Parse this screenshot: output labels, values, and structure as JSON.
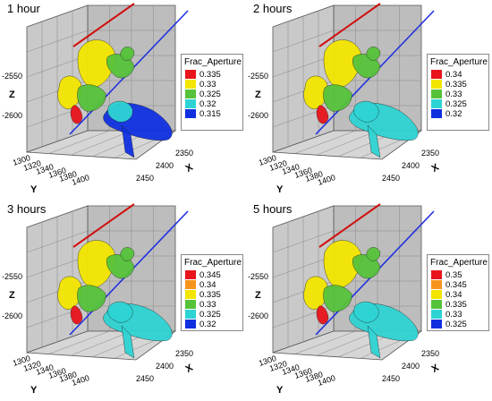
{
  "legend_title": "Frac_Aperture",
  "axis_names": {
    "z": "Z",
    "y": "Y",
    "x": "X"
  },
  "z_ticks": [
    "-2550",
    "-2600"
  ],
  "y_ticks": [
    "1300",
    "1320",
    "1340",
    "1360",
    "1380",
    "1400"
  ],
  "x_ticks": [
    "2350",
    "2400",
    "2450"
  ],
  "colors": {
    "red": "#e8141b",
    "orange": "#f7941d",
    "yellow": "#f2e600",
    "green": "#56c23a",
    "cyan": "#2ed3d3",
    "blue": "#1030e0",
    "well_red": "#d01010",
    "well_blue": "#2030e0"
  },
  "panels": [
    {
      "title": "1 hour",
      "levels": [
        "0.335",
        "0.33",
        "0.325",
        "0.32",
        "0.315"
      ]
    },
    {
      "title": "2 hours",
      "levels": [
        "0.34",
        "0.335",
        "0.33",
        "0.325",
        "0.32"
      ]
    },
    {
      "title": "3 hours",
      "levels": [
        "0.345",
        "0.34",
        "0.335",
        "0.33",
        "0.325",
        "0.32"
      ]
    },
    {
      "title": "5 hours",
      "levels": [
        "0.35",
        "0.345",
        "0.34",
        "0.335",
        "0.33",
        "0.325"
      ]
    }
  ]
}
